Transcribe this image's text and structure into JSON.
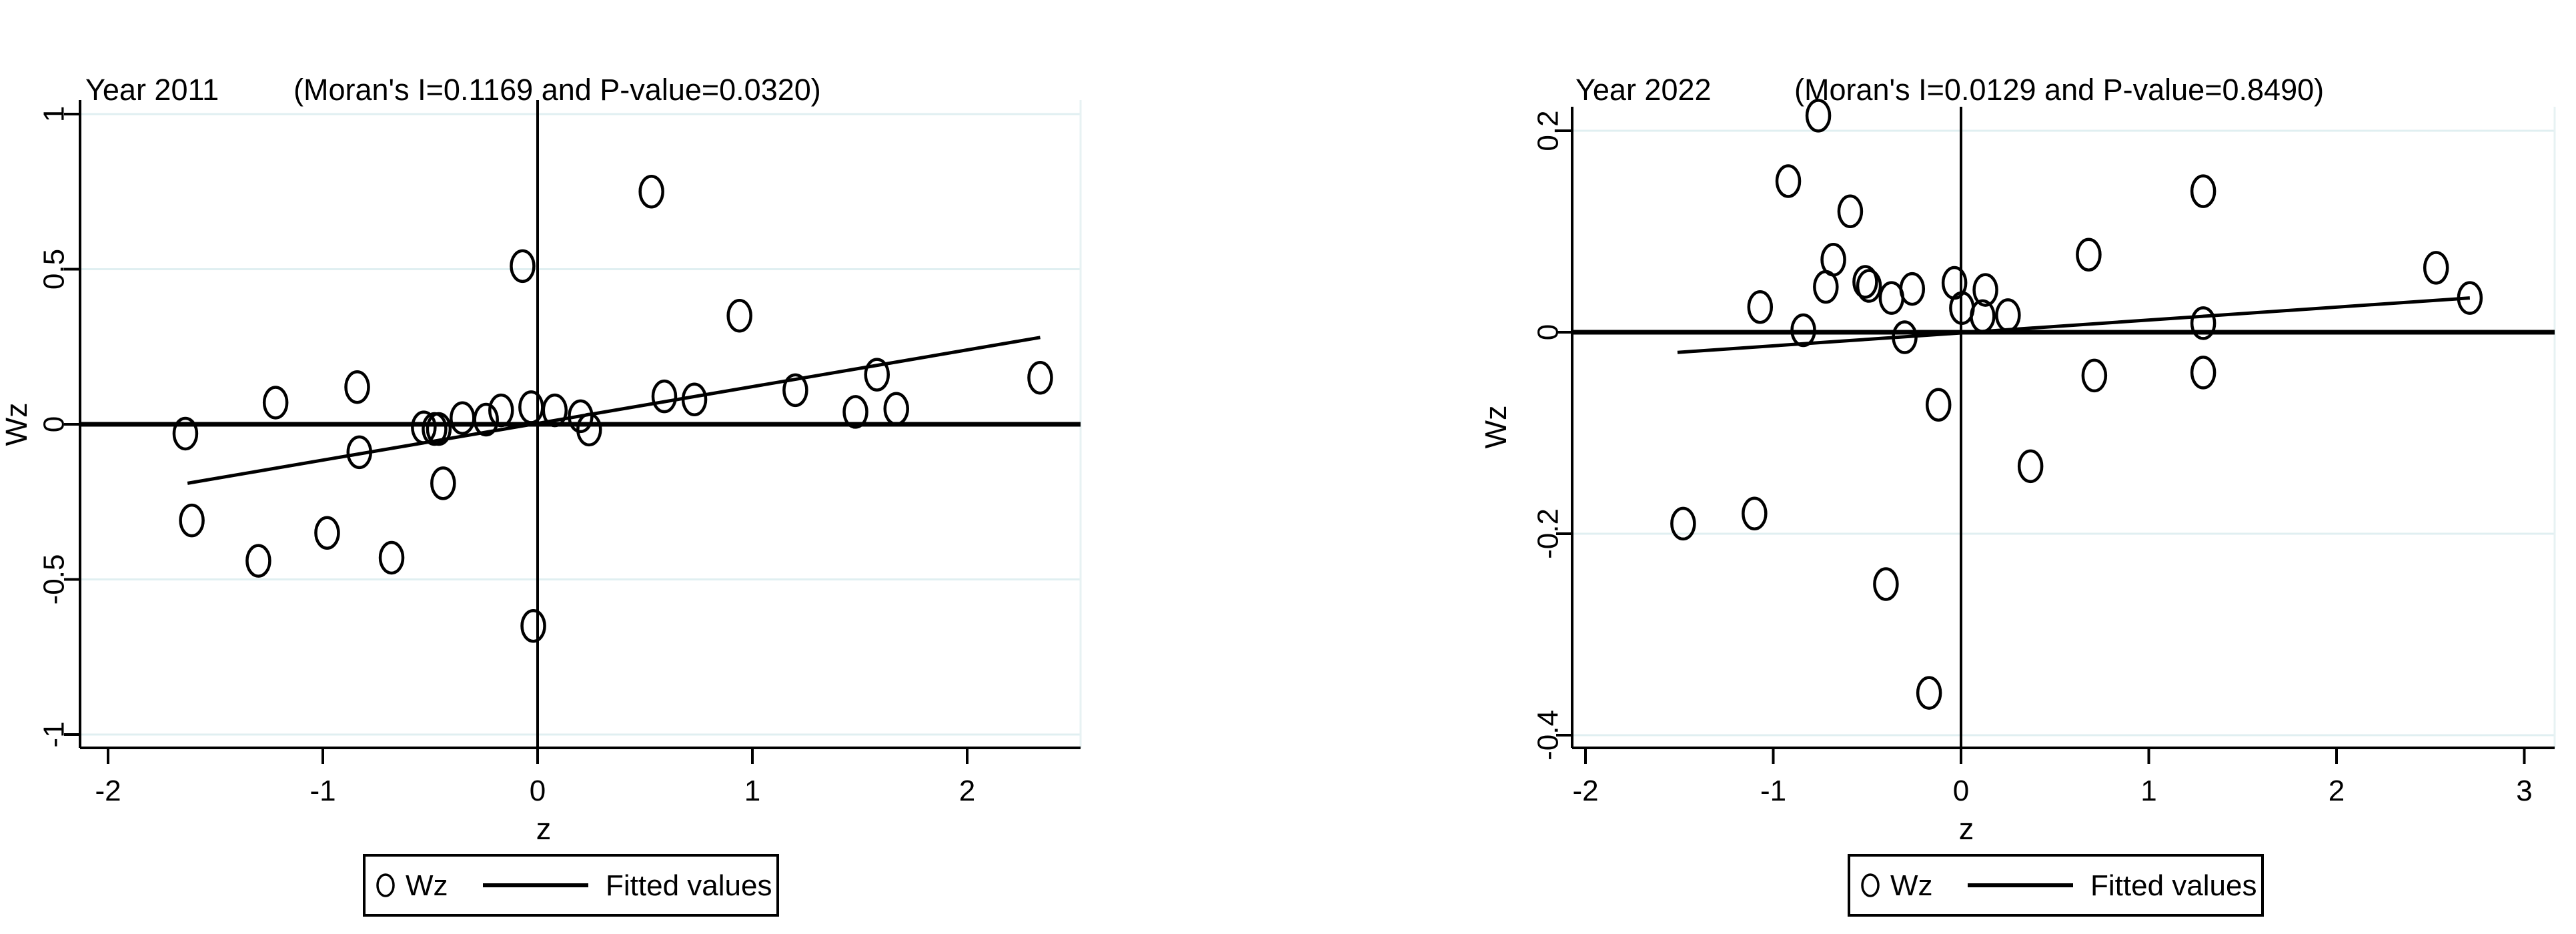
{
  "figure": {
    "background": "#ffffff",
    "colors": {
      "marker": "#000000",
      "fitted_line": "#000000",
      "axis": "#000000",
      "grid": "#e0eff1",
      "plot_border": "#e7f2f3"
    }
  },
  "chart_data": [
    {
      "type": "scatter",
      "title_year": "Year 2011",
      "title_stats": "(Moran's I=0.1169 and P-value=0.0320)",
      "moran_i": "0.1169",
      "p_value": "0.0320",
      "xlabel": "z",
      "ylabel": "Wz",
      "x_ticks": [
        -2,
        -1,
        0,
        1,
        2
      ],
      "y_ticks": [
        1,
        0.5,
        0,
        -0.5,
        -1
      ],
      "xlim": [
        -2.13,
        2.53
      ],
      "ylim": [
        -1.04,
        1.05
      ],
      "grid": true,
      "ref_line_x": 0,
      "ref_line_y": 0,
      "legend": [
        "Wz",
        "Fitted values"
      ],
      "legend_position": "bottom-center",
      "fitted_line": {
        "x1": -1.63,
        "y1": -0.19,
        "x2": 2.34,
        "y2": 0.28
      },
      "points": [
        [
          -1.64,
          -0.03
        ],
        [
          -1.61,
          -0.31
        ],
        [
          -1.3,
          -0.44
        ],
        [
          -1.22,
          0.07
        ],
        [
          -0.98,
          -0.35
        ],
        [
          -0.84,
          0.12
        ],
        [
          -0.83,
          -0.09
        ],
        [
          -0.68,
          -0.43
        ],
        [
          -0.53,
          -0.01
        ],
        [
          -0.48,
          -0.015
        ],
        [
          -0.46,
          -0.015
        ],
        [
          -0.44,
          -0.19
        ],
        [
          -0.35,
          0.02
        ],
        [
          -0.24,
          0.015
        ],
        [
          -0.17,
          0.045
        ],
        [
          -0.07,
          0.51
        ],
        [
          -0.03,
          0.055
        ],
        [
          -0.02,
          -0.65
        ],
        [
          0.08,
          0.045
        ],
        [
          0.2,
          0.026
        ],
        [
          0.24,
          -0.017
        ],
        [
          0.53,
          0.75
        ],
        [
          0.59,
          0.09
        ],
        [
          0.73,
          0.08
        ],
        [
          0.94,
          0.35
        ],
        [
          1.2,
          0.11
        ],
        [
          1.48,
          0.04
        ],
        [
          1.58,
          0.16
        ],
        [
          1.67,
          0.05
        ],
        [
          2.34,
          0.15
        ]
      ]
    },
    {
      "type": "scatter",
      "title_year": "Year 2022",
      "title_stats": "(Moran's I=0.0129 and P-value=0.8490)",
      "moran_i": "0.0129",
      "p_value": "0.8490",
      "xlabel": "z",
      "ylabel": "Wz",
      "x_ticks": [
        -2,
        -1,
        0,
        1,
        2,
        3
      ],
      "y_ticks": [
        0.2,
        0,
        -0.2,
        -0.4
      ],
      "xlim": [
        -2.07,
        3.16
      ],
      "ylim": [
        -0.413,
        0.224
      ],
      "grid": true,
      "ref_line_x": 0,
      "ref_line_y": 0,
      "legend": [
        "Wz",
        "Fitted values"
      ],
      "legend_position": "bottom-center",
      "fitted_line": {
        "x1": -1.51,
        "y1": -0.02,
        "x2": 2.71,
        "y2": 0.034
      },
      "points": [
        [
          -1.48,
          -0.19
        ],
        [
          -1.1,
          -0.18
        ],
        [
          -1.07,
          0.025
        ],
        [
          -0.92,
          0.15
        ],
        [
          -0.84,
          0.002
        ],
        [
          -0.76,
          0.215
        ],
        [
          -0.72,
          0.045
        ],
        [
          -0.68,
          0.072
        ],
        [
          -0.59,
          0.12
        ],
        [
          -0.51,
          0.05
        ],
        [
          -0.49,
          0.046
        ],
        [
          -0.4,
          -0.25
        ],
        [
          -0.37,
          0.034
        ],
        [
          -0.3,
          -0.005
        ],
        [
          -0.26,
          0.043
        ],
        [
          -0.17,
          -0.358
        ],
        [
          -0.12,
          -0.072
        ],
        [
          -0.035,
          0.049
        ],
        [
          0.005,
          0.024
        ],
        [
          0.115,
          0.016
        ],
        [
          0.13,
          0.042
        ],
        [
          0.25,
          0.017
        ],
        [
          0.37,
          -0.133
        ],
        [
          0.68,
          0.077
        ],
        [
          0.71,
          -0.043
        ],
        [
          1.29,
          0.14
        ],
        [
          1.29,
          0.009
        ],
        [
          1.29,
          -0.04
        ],
        [
          2.53,
          0.064
        ],
        [
          2.71,
          0.034
        ]
      ]
    }
  ]
}
